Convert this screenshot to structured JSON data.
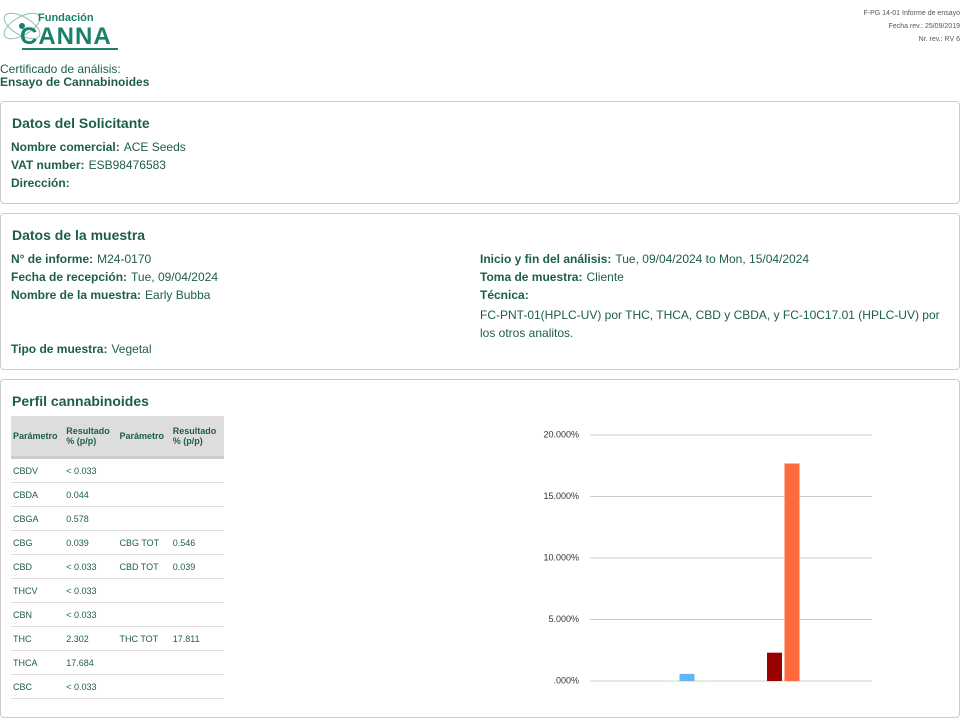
{
  "logo": {
    "line1": "Fundación",
    "line2": "CANNA"
  },
  "doc_info": [
    "F-PG 14-01 Informe de ensayo",
    "Fecha rev.: 25/09/2019",
    "Nr. rev.: RV 6"
  ],
  "heading": {
    "line1": "Certificado de análisis:",
    "line2": "Ensayo de Cannabinoides"
  },
  "applicant": {
    "title": "Datos del Solicitante",
    "fields": [
      {
        "label": "Nombre comercial:",
        "value": "ACE Seeds"
      },
      {
        "label": "VAT number:",
        "value": "ESB98476583"
      },
      {
        "label": "Dirección:"
      }
    ]
  },
  "sample": {
    "title": "Datos de la muestra",
    "left": [
      {
        "label": "N° de informe:",
        "value": "M24-0170"
      },
      {
        "label": "Fecha de recepción:",
        "value": "Tue, 09/04/2024"
      },
      {
        "label": "Nombre de la muestra:",
        "value": "Early Bubba"
      }
    ],
    "type_field": {
      "label": "Tipo de muestra:",
      "value": "Vegetal"
    },
    "right": [
      {
        "label": "Inicio y fin del análisis:",
        "value": "Tue, 09/04/2024 to Mon, 15/04/2024"
      },
      {
        "label": "Toma de muestra:",
        "value": "Cliente"
      },
      {
        "label": "Técnica:"
      }
    ],
    "technique": "FC-PNT-01(HPLC-UV) por THC, THCA, CBD y CBDA, y FC-10C17.01 (HPLC-UV) por los otros analitos."
  },
  "profile": {
    "title": "Perfil cannabinoides",
    "table": {
      "headers": [
        "Parámetro",
        "Resultado % (p/p)",
        "Parámetro",
        "Resultado % (p/p)"
      ],
      "rows": [
        [
          "CBDV",
          "< 0.033"
        ],
        [
          "CBDA",
          "0.044"
        ],
        [
          "CBGA",
          "0.578"
        ],
        [
          "CBG",
          "0.039",
          "CBG TOT",
          "0.546"
        ],
        [
          "CBD",
          "< 0.033",
          "CBD TOT",
          "0.039"
        ],
        [
          "THCV",
          "< 0.033"
        ],
        [
          "CBN",
          "< 0.033"
        ],
        [
          "THC",
          "2.302",
          "THC TOT",
          "17.811"
        ],
        [
          "THCA",
          "17.684"
        ],
        [
          "CBC",
          "< 0.033"
        ]
      ]
    }
  },
  "chart_data": {
    "type": "bar",
    "categories": [
      null,
      null,
      null,
      null,
      null,
      null,
      null,
      null,
      null,
      null
    ],
    "values": [
      0,
      0.044,
      0.578,
      0.039,
      0,
      0,
      0,
      2.302,
      17.684,
      0
    ],
    "colors": [
      "#b3e5fc",
      "#c8e6c9",
      "#64b5f6",
      "#c5e1a5",
      "#ffcdd2",
      "#f8bbd0",
      "#e1bee7",
      "#990000",
      "#ff6b3d",
      "#eeeeee"
    ],
    "ylim": [
      0,
      20
    ],
    "yticks": [
      {
        "value": 0,
        "label": ".000%"
      },
      {
        "value": 5,
        "label": "5.000%"
      },
      {
        "value": 10,
        "label": "10.000%"
      },
      {
        "value": 15,
        "label": "15.000%"
      },
      {
        "value": 20,
        "label": "20.000%"
      }
    ],
    "grid": true
  }
}
